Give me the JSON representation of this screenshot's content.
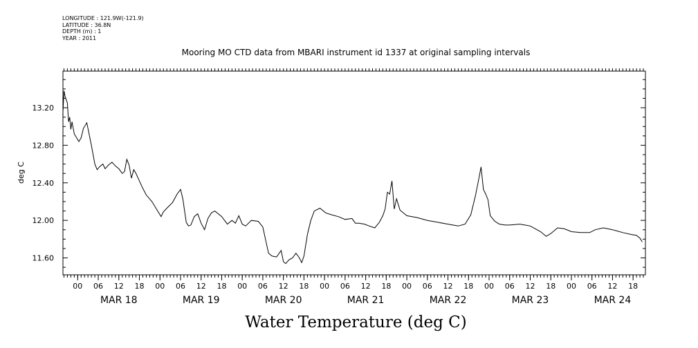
{
  "metadata": {
    "longitude": "LONGITUDE : 121.9W(-121.9)",
    "latitude": "LATITUDE : 36.8N",
    "depth": "DEPTH (m) : 1",
    "year": "YEAR : 2011"
  },
  "chart_data": {
    "type": "line",
    "title": "Mooring MO CTD data from MBARI instrument id 1337 at original sampling intervals",
    "ylabel": "deg C",
    "xlabel": "Water Temperature (deg C)",
    "ylim": [
      11.42,
      13.59
    ],
    "xlim_hours": [
      -4.3,
      165.6
    ],
    "y_ticks": [
      "11.60",
      "12.00",
      "12.40",
      "12.80",
      "13.20"
    ],
    "y_tick_values": [
      11.6,
      12.0,
      12.4,
      12.8,
      13.2
    ],
    "hour_ticks": [
      "00",
      "06",
      "12",
      "18"
    ],
    "day_labels": [
      "MAR 18",
      "MAR 19",
      "MAR 20",
      "MAR 21",
      "MAR 22",
      "MAR 23",
      "MAR 24"
    ],
    "series": [
      {
        "x": [
          "MAR 17 19:40",
          "MAR 17 20:00",
          "MAR 17 20:20",
          "MAR 17 21:00",
          "MAR 17 21:20",
          "MAR 17 21:40",
          "MAR 17 22:00",
          "MAR 17 22:20",
          "MAR 17 23:00",
          "MAR 17 23:40",
          "MAR 18 00:20",
          "MAR 18 01:00",
          "MAR 18 01:40",
          "MAR 18 02:40",
          "MAR 18 04:00",
          "MAR 18 05:00",
          "MAR 18 05:40",
          "MAR 18 06:20",
          "MAR 18 07:20",
          "MAR 18 08:00",
          "MAR 18 09:00",
          "MAR 18 10:00",
          "MAR 18 11:00",
          "MAR 18 12:00",
          "MAR 18 13:00",
          "MAR 18 13:40",
          "MAR 18 14:20",
          "MAR 18 15:00",
          "MAR 18 15:40",
          "MAR 18 16:20",
          "MAR 18 17:00",
          "MAR 18 18:00",
          "MAR 18 19:00",
          "MAR 18 20:00",
          "MAR 18 21:40",
          "MAR 18 23:20",
          "MAR 19 00:20",
          "MAR 19 01:00",
          "MAR 19 02:00",
          "MAR 19 03:40",
          "MAR 19 05:00",
          "MAR 19 06:00",
          "MAR 19 06:40",
          "MAR 19 07:40",
          "MAR 19 08:20",
          "MAR 19 09:00",
          "MAR 19 10:00",
          "MAR 19 11:00",
          "MAR 19 12:00",
          "MAR 19 13:00",
          "MAR 19 14:00",
          "MAR 19 15:00",
          "MAR 19 16:00",
          "MAR 19 18:00",
          "MAR 19 19:40",
          "MAR 19 21:00",
          "MAR 19 22:00",
          "MAR 19 23:00",
          "MAR 20 00:00",
          "MAR 20 01:00",
          "MAR 20 02:40",
          "MAR 20 04:40",
          "MAR 20 06:00",
          "MAR 20 07:00",
          "MAR 20 07:40",
          "MAR 20 08:40",
          "MAR 20 10:00",
          "MAR 20 11:20",
          "MAR 20 12:00",
          "MAR 20 12:40",
          "MAR 20 13:40",
          "MAR 20 14:40",
          "MAR 20 15:40",
          "MAR 20 16:40",
          "MAR 20 17:20",
          "MAR 20 18:00",
          "MAR 20 19:00",
          "MAR 20 20:00",
          "MAR 20 21:00",
          "MAR 20 22:40",
          "MAR 21 00:20",
          "MAR 21 02:00",
          "MAR 21 04:00",
          "MAR 21 06:00",
          "MAR 21 08:00",
          "MAR 21 09:00",
          "MAR 21 10:00",
          "MAR 21 11:40",
          "MAR 21 13:00",
          "MAR 21 14:40",
          "MAR 21 16:00",
          "MAR 21 17:00",
          "MAR 21 17:40",
          "MAR 21 18:20",
          "MAR 21 19:00",
          "MAR 21 19:40",
          "MAR 21 20:20",
          "MAR 21 21:00",
          "MAR 21 22:00",
          "MAR 22 00:00",
          "MAR 22 03:00",
          "MAR 22 06:00",
          "MAR 22 09:00",
          "MAR 22 12:00",
          "MAR 22 15:00",
          "MAR 22 17:00",
          "MAR 22 18:40",
          "MAR 22 20:00",
          "MAR 22 21:00",
          "MAR 22 21:40",
          "MAR 22 22:20",
          "MAR 22 23:00",
          "MAR 22 23:40",
          "MAR 23 00:20",
          "MAR 23 01:40",
          "MAR 23 03:00",
          "MAR 23 04:40",
          "MAR 23 06:00",
          "MAR 23 09:00",
          "MAR 23 12:00",
          "MAR 23 15:00",
          "MAR 23 16:40",
          "MAR 23 18:00",
          "MAR 23 20:00",
          "MAR 23 22:00",
          "MAR 24 00:00",
          "MAR 24 02:40",
          "MAR 24 05:20",
          "MAR 24 07:00",
          "MAR 24 09:20",
          "MAR 24 12:00",
          "MAR 24 15:00",
          "MAR 24 17:20",
          "MAR 24 19:00",
          "MAR 24 20:00",
          "MAR 24 20:40"
        ],
        "y": [
          13.12,
          13.38,
          13.32,
          13.25,
          13.05,
          13.1,
          12.97,
          13.05,
          12.92,
          12.88,
          12.84,
          12.88,
          12.98,
          13.04,
          12.8,
          12.6,
          12.54,
          12.57,
          12.6,
          12.55,
          12.59,
          12.62,
          12.58,
          12.55,
          12.5,
          12.52,
          12.65,
          12.59,
          12.45,
          12.54,
          12.5,
          12.42,
          12.34,
          12.27,
          12.2,
          12.1,
          12.04,
          12.09,
          12.13,
          12.19,
          12.28,
          12.33,
          12.23,
          11.98,
          11.94,
          11.95,
          12.04,
          12.07,
          11.97,
          11.9,
          12.02,
          12.08,
          12.1,
          12.04,
          11.96,
          12.0,
          11.97,
          12.05,
          11.96,
          11.94,
          12.0,
          11.99,
          11.93,
          11.76,
          11.65,
          11.62,
          11.61,
          11.68,
          11.56,
          11.54,
          11.58,
          11.6,
          11.65,
          11.6,
          11.55,
          11.62,
          11.85,
          12.0,
          12.1,
          12.13,
          12.08,
          12.06,
          12.04,
          12.01,
          12.02,
          11.97,
          11.97,
          11.96,
          11.94,
          11.92,
          11.98,
          12.05,
          12.12,
          12.3,
          12.28,
          12.42,
          12.12,
          12.23,
          12.11,
          12.05,
          12.03,
          12.0,
          11.98,
          11.96,
          11.94,
          11.96,
          12.06,
          12.26,
          12.44,
          12.57,
          12.33,
          12.28,
          12.22,
          12.05,
          11.99,
          11.96,
          11.95,
          11.95,
          11.96,
          11.94,
          11.88,
          11.83,
          11.86,
          11.92,
          11.91,
          11.88,
          11.87,
          11.87,
          11.9,
          11.92,
          11.9,
          11.87,
          11.85,
          11.84,
          11.81,
          11.77
        ]
      }
    ]
  }
}
